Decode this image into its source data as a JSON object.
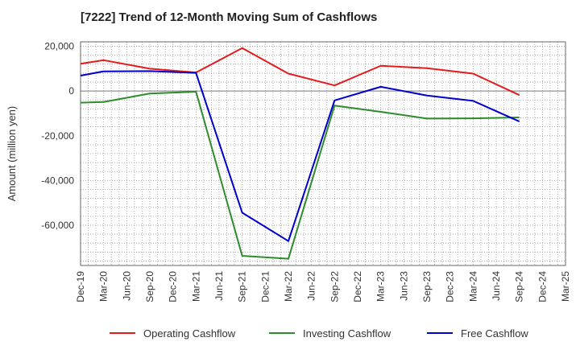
{
  "chart_data": {
    "type": "line",
    "title": "[7222]  Trend of 12-Month Moving Sum of Cashflows",
    "xlabel": "",
    "ylabel": "Amount (million yen)",
    "categories": [
      "Dec-19",
      "Mar-20",
      "Jun-20",
      "Sep-20",
      "Dec-20",
      "Mar-21",
      "Jun-21",
      "Sep-21",
      "Dec-21",
      "Mar-22",
      "Jun-22",
      "Sep-22",
      "Dec-22",
      "Mar-23",
      "Jun-23",
      "Sep-23",
      "Dec-23",
      "Mar-24",
      "Jun-24",
      "Sep-24",
      "Dec-24",
      "Mar-25"
    ],
    "ylim": [
      -78000,
      22000
    ],
    "yticks": [
      20000,
      0,
      -20000,
      -40000,
      -60000
    ],
    "ytick_labels": [
      "20,000",
      "0",
      "-20,000",
      "-40,000",
      "-60,000"
    ],
    "grid": true,
    "legend_position": "bottom",
    "series": [
      {
        "name": "Operating Cashflow",
        "color": "#e41a1c",
        "values": [
          12200,
          13800,
          null,
          10000,
          null,
          8300,
          null,
          19200,
          null,
          7800,
          null,
          2500,
          null,
          11300,
          null,
          10200,
          null,
          7800,
          null,
          -1800,
          null,
          null
        ]
      },
      {
        "name": "Investing Cashflow",
        "color": "#2e8b2e",
        "values": [
          -5200,
          -4900,
          null,
          -1100,
          null,
          -300,
          null,
          -73700,
          null,
          -75000,
          null,
          -6500,
          null,
          -9300,
          null,
          -12300,
          null,
          -12200,
          null,
          -11800,
          null,
          null
        ]
      },
      {
        "name": "Free Cashflow",
        "color": "#0000cc",
        "values": [
          6900,
          8800,
          null,
          8900,
          null,
          8100,
          null,
          -54400,
          null,
          -67100,
          null,
          -4200,
          null,
          1900,
          null,
          -2000,
          null,
          -4400,
          null,
          -13600,
          null,
          null
        ]
      }
    ]
  }
}
